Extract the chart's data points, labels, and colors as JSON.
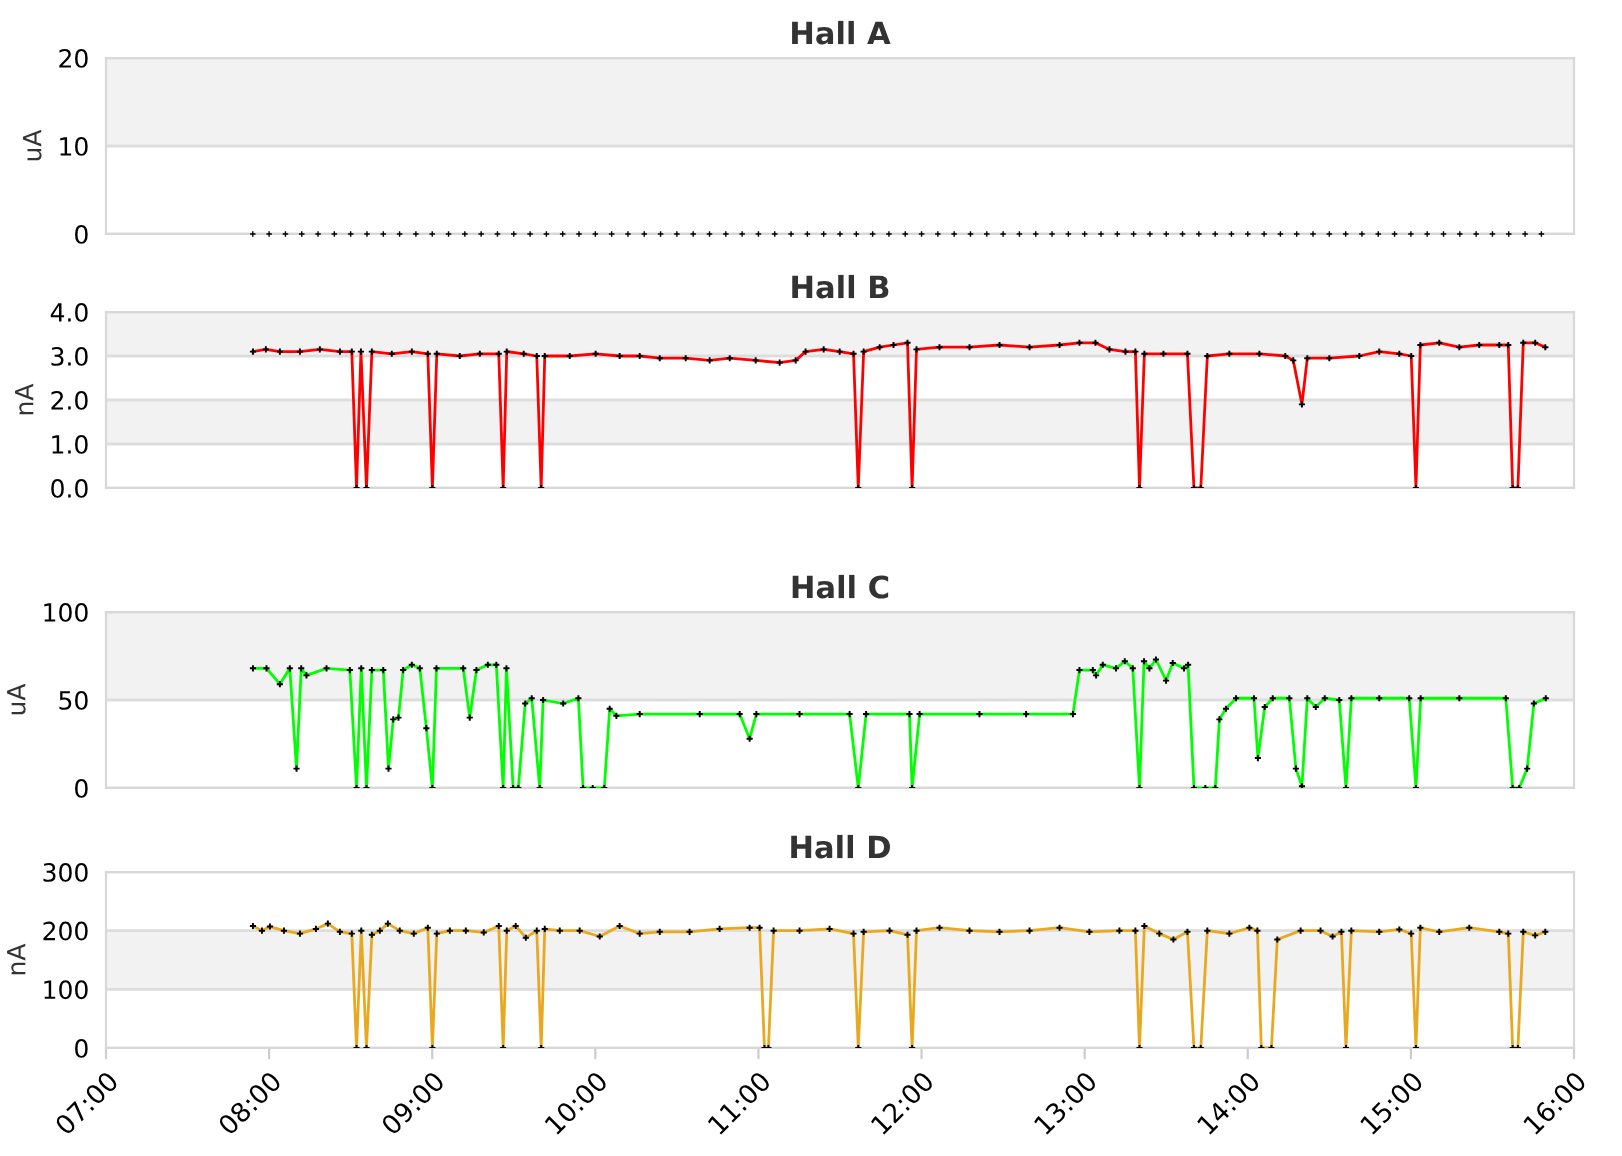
{
  "chart_data": [
    {
      "type": "scatter",
      "title": "Hall A",
      "ylabel": "uA",
      "xlim": [
        7,
        16
      ],
      "ylim": [
        0,
        20
      ],
      "yticks": [
        0,
        10,
        20
      ],
      "grid": "y",
      "tick_labels": "y",
      "marker": "cross",
      "bands": [
        {
          "axis": "y",
          "from": 10,
          "to": 20,
          "color": "#f2f2f2"
        }
      ],
      "series": [
        {
          "color": "#000000",
          "x": [
            7.9,
            8.0,
            8.1,
            8.2,
            8.3,
            8.4,
            8.5,
            8.6,
            8.7,
            8.8,
            8.9,
            9.0,
            9.1,
            9.2,
            9.3,
            9.4,
            9.5,
            9.6,
            9.7,
            9.8,
            9.9,
            10.0,
            10.1,
            10.2,
            10.3,
            10.4,
            10.5,
            10.6,
            10.7,
            10.8,
            10.9,
            11.0,
            11.1,
            11.2,
            11.3,
            11.4,
            11.5,
            11.6,
            11.7,
            11.8,
            11.9,
            12.0,
            12.1,
            12.2,
            12.3,
            12.4,
            12.5,
            12.6,
            12.7,
            12.8,
            12.9,
            13.0,
            13.1,
            13.2,
            13.3,
            13.4,
            13.5,
            13.6,
            13.7,
            13.8,
            13.9,
            14.0,
            14.1,
            14.2,
            14.3,
            14.4,
            14.5,
            14.6,
            14.7,
            14.8,
            14.9,
            15.0,
            15.1,
            15.2,
            15.3,
            15.4,
            15.5,
            15.6,
            15.7,
            15.8
          ],
          "values": [
            0,
            0,
            0,
            0,
            0,
            0,
            0,
            0,
            0,
            0,
            0,
            0,
            0,
            0,
            0,
            0,
            0,
            0,
            0,
            0,
            0,
            0,
            0,
            0,
            0,
            0,
            0,
            0,
            0,
            0,
            0,
            0,
            0,
            0,
            0,
            0,
            0,
            0,
            0,
            0,
            0,
            0,
            0,
            0,
            0,
            0,
            0,
            0,
            0,
            0,
            0,
            0,
            0,
            0,
            0,
            0,
            0,
            0,
            0,
            0,
            0,
            0,
            0,
            0,
            0,
            0,
            0,
            0,
            0,
            0,
            0,
            0,
            0,
            0,
            0,
            0,
            0,
            0,
            0,
            0
          ]
        }
      ]
    },
    {
      "type": "line",
      "title": "Hall B",
      "ylabel": "nA",
      "xlim": [
        7,
        16
      ],
      "ylim": [
        0,
        4
      ],
      "yticks": [
        {
          "value": 0,
          "label": "0.0"
        },
        {
          "value": 1,
          "label": "1.0"
        },
        {
          "value": 2,
          "label": "2.0"
        },
        {
          "value": 3,
          "label": "3.0"
        },
        {
          "value": 4,
          "label": "4.0"
        }
      ],
      "grid": "y",
      "tick_labels": "y",
      "marker": "cross",
      "bands": [
        {
          "axis": "y",
          "from": 3,
          "to": 4,
          "color": "#f2f2f2"
        },
        {
          "axis": "y",
          "from": 1,
          "to": 2,
          "color": "#f2f2f2"
        }
      ],
      "series": [
        {
          "color": "#ff0000",
          "x": [
            7.901,
            7.98,
            8.066,
            8.189,
            8.311,
            8.434,
            8.507,
            8.536,
            8.563,
            8.597,
            8.63,
            8.752,
            8.875,
            8.973,
            9.001,
            9.028,
            9.169,
            9.292,
            9.408,
            9.435,
            9.457,
            9.561,
            9.641,
            9.668,
            9.69,
            9.843,
            10.002,
            10.149,
            10.272,
            10.395,
            10.554,
            10.701,
            10.824,
            10.983,
            11.13,
            11.228,
            11.289,
            11.4,
            11.498,
            11.583,
            11.612,
            11.645,
            11.743,
            11.828,
            11.914,
            11.942,
            11.969,
            12.11,
            12.294,
            12.478,
            12.662,
            12.846,
            12.968,
            13.066,
            13.152,
            13.25,
            13.311,
            13.336,
            13.366,
            13.483,
            13.63,
            13.67,
            13.712,
            13.752,
            13.887,
            14.071,
            14.23,
            14.279,
            14.332,
            14.365,
            14.5,
            14.684,
            14.806,
            14.929,
            15.002,
            15.031,
            15.058,
            15.174,
            15.297,
            15.419,
            15.542,
            15.597,
            15.624,
            15.656,
            15.689,
            15.762,
            15.824
          ],
          "values": [
            3.1,
            3.15,
            3.1,
            3.1,
            3.15,
            3.1,
            3.1,
            0,
            3.1,
            0,
            3.1,
            3.05,
            3.1,
            3.05,
            0,
            3.05,
            3.0,
            3.05,
            3.05,
            0,
            3.1,
            3.05,
            3.0,
            0,
            3.0,
            3.0,
            3.05,
            3.0,
            3.0,
            2.95,
            2.95,
            2.9,
            2.95,
            2.9,
            2.85,
            2.9,
            3.1,
            3.15,
            3.1,
            3.05,
            0,
            3.1,
            3.2,
            3.25,
            3.3,
            0,
            3.15,
            3.2,
            3.2,
            3.25,
            3.2,
            3.25,
            3.3,
            3.3,
            3.15,
            3.1,
            3.1,
            0,
            3.05,
            3.05,
            3.05,
            0,
            0,
            3.0,
            3.05,
            3.05,
            3.0,
            2.9,
            1.9,
            2.95,
            2.95,
            3.0,
            3.1,
            3.05,
            3.0,
            0,
            3.25,
            3.3,
            3.2,
            3.25,
            3.25,
            3.25,
            0,
            0,
            3.3,
            3.3,
            3.2
          ]
        }
      ]
    },
    {
      "type": "line",
      "title": "Hall C",
      "ylabel": "uA",
      "xlim": [
        7,
        16
      ],
      "ylim": [
        0,
        100
      ],
      "yticks": [
        0,
        50,
        100
      ],
      "grid": "y",
      "tick_labels": "y",
      "marker": "cross",
      "bands": [
        {
          "axis": "y",
          "from": 50,
          "to": 100,
          "color": "#f2f2f2"
        }
      ],
      "series": [
        {
          "color": "#00ff00",
          "x": [
            7.901,
            7.984,
            8.066,
            8.127,
            8.168,
            8.197,
            8.229,
            8.352,
            8.495,
            8.536,
            8.565,
            8.597,
            8.63,
            8.7,
            8.732,
            8.761,
            8.793,
            8.822,
            8.875,
            8.924,
            8.964,
            9.001,
            9.026,
            9.19,
            9.23,
            9.271,
            9.341,
            9.393,
            9.435,
            9.455,
            9.496,
            9.528,
            9.57,
            9.61,
            9.659,
            9.68,
            9.803,
            9.896,
            9.925,
            9.984,
            10.055,
            10.088,
            10.129,
            10.272,
            10.64,
            10.885,
            10.946,
            10.987,
            11.252,
            11.559,
            11.612,
            11.66,
            11.926,
            11.942,
            11.988,
            12.355,
            12.641,
            12.928,
            12.968,
            13.05,
            13.07,
            13.111,
            13.192,
            13.246,
            13.295,
            13.336,
            13.364,
            13.397,
            13.437,
            13.499,
            13.54,
            13.609,
            13.634,
            13.67,
            13.74,
            13.801,
            13.826,
            13.866,
            13.928,
            14.038,
            14.062,
            14.104,
            14.153,
            14.255,
            14.295,
            14.332,
            14.365,
            14.417,
            14.472,
            14.561,
            14.602,
            14.635,
            14.806,
            14.99,
            15.031,
            15.06,
            15.297,
            15.582,
            15.624,
            15.664,
            15.713,
            15.754,
            15.827
          ],
          "values": [
            68,
            68,
            59,
            68,
            11,
            68,
            64,
            68,
            67,
            0,
            68,
            0,
            67,
            67,
            11,
            39,
            40,
            67,
            70,
            68,
            34,
            0,
            68,
            68,
            40,
            67,
            70,
            70,
            0,
            68,
            0,
            0,
            48,
            51,
            0,
            50,
            48,
            51,
            0,
            0,
            0,
            45,
            41,
            42,
            42,
            42,
            28,
            42,
            42,
            42,
            0,
            42,
            42,
            0,
            42,
            42,
            42,
            42,
            67,
            67,
            64,
            70,
            68,
            72,
            68,
            0,
            72,
            68,
            73,
            61,
            71,
            68,
            70,
            0,
            0,
            0,
            39,
            45,
            51,
            51,
            17,
            46,
            51,
            51,
            11,
            1,
            51,
            46,
            51,
            50,
            0,
            51,
            51,
            51,
            0,
            51,
            51,
            51,
            0,
            0,
            11,
            48,
            51
          ]
        }
      ]
    },
    {
      "type": "line",
      "title": "Hall D",
      "ylabel": "nA",
      "xlim": [
        7,
        16
      ],
      "xticks": [
        {
          "value": 7,
          "label": "07:00"
        },
        {
          "value": 8,
          "label": "08:00"
        },
        {
          "value": 9,
          "label": "09:00"
        },
        {
          "value": 10,
          "label": "10:00"
        },
        {
          "value": 11,
          "label": "11:00"
        },
        {
          "value": 12,
          "label": "12:00"
        },
        {
          "value": 13,
          "label": "13:00"
        },
        {
          "value": 14,
          "label": "14:00"
        },
        {
          "value": 15,
          "label": "15:00"
        },
        {
          "value": 16,
          "label": "16:00"
        }
      ],
      "ylim": [
        0,
        300
      ],
      "yticks": [
        0,
        100,
        200,
        300
      ],
      "grid": "y",
      "marker": "cross",
      "bands": [
        {
          "axis": "y",
          "from": 100,
          "to": 200,
          "color": "#f2f2f2"
        }
      ],
      "series": [
        {
          "color": "#e8a820",
          "x": [
            7.901,
            7.956,
            8.005,
            8.091,
            8.189,
            8.287,
            8.36,
            8.434,
            8.507,
            8.536,
            8.565,
            8.597,
            8.63,
            8.679,
            8.728,
            8.801,
            8.887,
            8.973,
            9.001,
            9.028,
            9.108,
            9.206,
            9.316,
            9.408,
            9.435,
            9.457,
            9.512,
            9.574,
            9.641,
            9.668,
            9.69,
            9.782,
            9.904,
            10.027,
            10.149,
            10.272,
            10.395,
            10.578,
            10.762,
            10.946,
            11.007,
            11.037,
            11.061,
            11.093,
            11.252,
            11.436,
            11.583,
            11.612,
            11.645,
            11.804,
            11.914,
            11.942,
            11.969,
            12.11,
            12.294,
            12.478,
            12.662,
            12.846,
            13.029,
            13.213,
            13.311,
            13.336,
            13.366,
            13.458,
            13.544,
            13.63,
            13.67,
            13.712,
            13.752,
            13.887,
            14.01,
            14.059,
            14.083,
            14.145,
            14.181,
            14.324,
            14.446,
            14.52,
            14.574,
            14.602,
            14.635,
            14.806,
            14.929,
            15.002,
            15.031,
            15.058,
            15.174,
            15.358,
            15.542,
            15.597,
            15.624,
            15.656,
            15.689,
            15.762,
            15.824
          ],
          "values": [
            208,
            200,
            207,
            200,
            195,
            203,
            212,
            198,
            195,
            0,
            200,
            0,
            193,
            200,
            212,
            200,
            195,
            205,
            0,
            195,
            200,
            200,
            197,
            208,
            0,
            200,
            208,
            188,
            200,
            0,
            203,
            200,
            200,
            190,
            208,
            195,
            198,
            198,
            203,
            205,
            205,
            0,
            0,
            200,
            200,
            203,
            195,
            0,
            198,
            200,
            193,
            0,
            200,
            205,
            200,
            198,
            200,
            205,
            198,
            200,
            200,
            0,
            208,
            195,
            185,
            198,
            0,
            0,
            200,
            195,
            205,
            200,
            0,
            0,
            185,
            200,
            200,
            190,
            198,
            0,
            200,
            198,
            202,
            195,
            0,
            205,
            198,
            205,
            198,
            195,
            0,
            0,
            198,
            192,
            198
          ]
        }
      ]
    }
  ]
}
